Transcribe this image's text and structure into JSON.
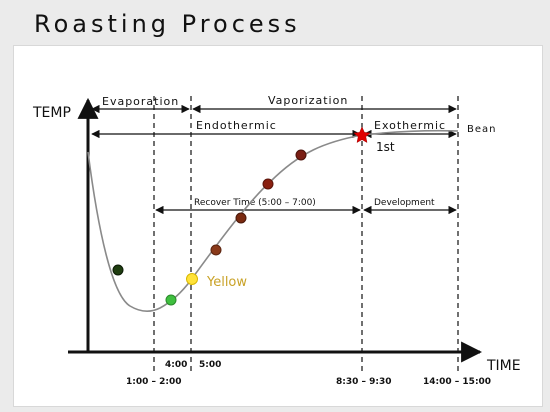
{
  "title": "Roasting Process",
  "axes": {
    "y_label": "TEMP",
    "x_label": "TIME"
  },
  "phases": {
    "evaporation": "Evaporation",
    "vaporization": "Vaporization",
    "endothermic": "Endothermic",
    "exothermic": "Exothermic",
    "bean": "Bean",
    "recover_time": "Recover Time  (5:00 – 7:00)",
    "development": "Development"
  },
  "annotations": {
    "yellow": "Yellow",
    "first_crack": "1st"
  },
  "ticks": {
    "t1": "1:00  –  2:00",
    "t2": "4:00",
    "t3": "5:00",
    "t4": "8:30  –  9:30",
    "t5": "14:00  –  15:00"
  },
  "colors": {
    "curve": "#8a8a8a",
    "bean": "#2e5a1c",
    "yellow_text": "#c9a227",
    "markers": [
      "#1f3d10",
      "#3fbf3f",
      "#ffe23a",
      "#8a3a1a",
      "#7a2a10",
      "#8a2010",
      "#7a1e14",
      "#e00000"
    ]
  }
}
